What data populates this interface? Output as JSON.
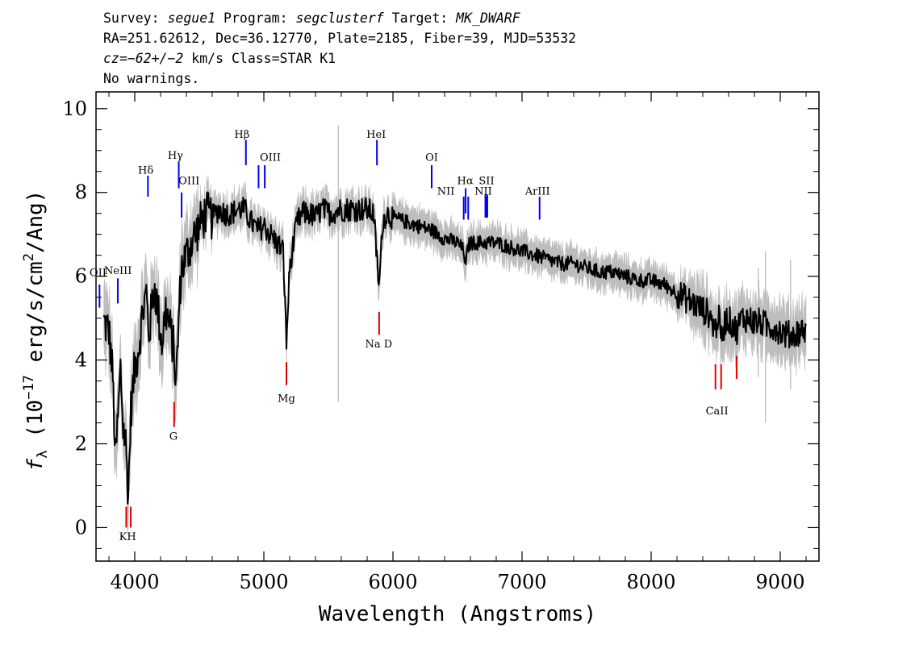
{
  "header": {
    "line1": {
      "survey_label": "Survey:",
      "survey": "segue1",
      "program_label": "Program:",
      "program": "segclusterf",
      "target_label": "Target:",
      "target": "MK_DWARF"
    },
    "line2": "RA=251.62612, Dec=36.12770, Plate=2185, Fiber=39, MJD=53532",
    "line3": {
      "cz": "cz=−62+/−2",
      "rest": " km/s Class=STAR K1"
    },
    "line4": "No warnings."
  },
  "colors": {
    "flux": "#000000",
    "error_band": "#bdbdbd",
    "emission_marker": "#0000ee",
    "absorption_marker": "#dd0000"
  },
  "chart_data": {
    "type": "line",
    "xlabel": "Wavelength (Angstroms)",
    "ylabel_parts": {
      "f": "f",
      "sub": "λ",
      "open": " (10",
      "exp1": "−17",
      "mid": " erg/s/cm",
      "exp2": "2",
      "close": "/Ang)"
    },
    "xlim": [
      3700,
      9300
    ],
    "ylim": [
      -0.8,
      10.4
    ],
    "xticks": [
      4000,
      5000,
      6000,
      7000,
      8000,
      9000
    ],
    "yticks": [
      0,
      2,
      4,
      6,
      8,
      10
    ],
    "series": [
      {
        "x": [
          3760,
          3800,
          3830,
          3850,
          3870,
          3890,
          3910,
          3930,
          3950,
          3970,
          4000,
          4030,
          4060,
          4090,
          4110,
          4150,
          4180,
          4210,
          4240,
          4270,
          4300,
          4320,
          4340,
          4360,
          4400,
          4450,
          4500,
          4550,
          4600,
          4650,
          4700,
          4750,
          4800,
          4850,
          4900,
          4950,
          5000,
          5050,
          5100,
          5150,
          5175,
          5200,
          5230,
          5260,
          5300,
          5350,
          5400,
          5450,
          5500,
          5600,
          5700,
          5800,
          5850,
          5893,
          5920,
          5950,
          6000,
          6100,
          6200,
          6300,
          6400,
          6500,
          6550,
          6563,
          6580,
          6600,
          6700,
          6800,
          6900,
          7000,
          7100,
          7200,
          7300,
          7400,
          7500,
          7600,
          7700,
          7800,
          7900,
          8000,
          8100,
          8200,
          8300,
          8400,
          8450,
          8498,
          8520,
          8542,
          8580,
          8620,
          8662,
          8700,
          8750,
          8800,
          8850,
          8900,
          8950,
          9000,
          9050,
          9100,
          9150,
          9200
        ],
        "y": [
          4.9,
          4.7,
          3.6,
          1.6,
          2.6,
          3.8,
          2.4,
          2.0,
          0.8,
          2.8,
          3.8,
          4.3,
          5.1,
          5.6,
          4.6,
          5.8,
          5.2,
          4.4,
          5.2,
          4.8,
          4.3,
          3.4,
          4.9,
          6.2,
          6.5,
          6.9,
          7.2,
          7.5,
          7.4,
          7.6,
          7.5,
          7.5,
          7.6,
          7.6,
          7.3,
          7.1,
          7.2,
          7.0,
          6.8,
          6.6,
          4.4,
          6.2,
          6.8,
          7.3,
          7.5,
          7.5,
          7.4,
          7.6,
          7.5,
          7.6,
          7.6,
          7.6,
          7.5,
          5.7,
          7.3,
          7.5,
          7.4,
          7.3,
          7.2,
          7.1,
          6.9,
          6.8,
          6.6,
          6.2,
          6.7,
          6.8,
          6.8,
          6.8,
          6.7,
          6.6,
          6.5,
          6.4,
          6.3,
          6.3,
          6.2,
          6.1,
          6.1,
          6.0,
          5.9,
          5.9,
          5.8,
          5.6,
          5.4,
          5.2,
          5.1,
          4.7,
          5.1,
          4.5,
          5.0,
          4.9,
          4.7,
          5.0,
          5.0,
          4.9,
          4.9,
          4.8,
          4.8,
          4.7,
          4.6,
          4.6,
          4.7,
          4.7
        ]
      }
    ],
    "error_band_halfwidth": 0.35,
    "emission_lines": [
      {
        "label": "NeIII",
        "x": 3869,
        "y0": 5.35,
        "y1": 5.95,
        "lx": 3870,
        "ly": 6.05
      },
      {
        "label": "OII",
        "x": 3727,
        "y0": 5.25,
        "y1": 5.8,
        "lx": 3715,
        "ly": 6.0
      },
      {
        "label": "Hδ",
        "x": 4102,
        "y0": 7.9,
        "y1": 8.4,
        "lx": 4085,
        "ly": 8.45
      },
      {
        "label": "Hγ",
        "x": 4341,
        "y0": 8.1,
        "y1": 8.75,
        "lx": 4315,
        "ly": 8.8
      },
      {
        "label": "OIII",
        "x": 4363,
        "y0": 7.4,
        "y1": 8.0,
        "lx": 4420,
        "ly": 8.2
      },
      {
        "label": "Hβ",
        "x": 4861,
        "y0": 8.65,
        "y1": 9.25,
        "lx": 4830,
        "ly": 9.3
      },
      {
        "label": "OIII",
        "x": 4959,
        "y0": 8.1,
        "y1": 8.65,
        "lx": 5050,
        "ly": 8.75
      },
      {
        "label": "OIII",
        "x": 5007,
        "y0": 8.1,
        "y1": 8.65
      },
      {
        "label": "HeI",
        "x": 5876,
        "y0": 8.65,
        "y1": 9.25,
        "lx": 5870,
        "ly": 9.3
      },
      {
        "label": "OI",
        "x": 6300,
        "y0": 8.1,
        "y1": 8.65,
        "lx": 6300,
        "ly": 8.75
      },
      {
        "label": "NII",
        "x": 6548,
        "y0": 7.35,
        "y1": 7.9,
        "lx": 6410,
        "ly": 7.95
      },
      {
        "label": "Hα",
        "x": 6563,
        "y0": 7.5,
        "y1": 8.1,
        "lx": 6560,
        "ly": 8.2
      },
      {
        "label": "NII",
        "x": 6583,
        "y0": 7.35,
        "y1": 7.9
      },
      {
        "label": "SII",
        "x": 6716,
        "y0": 7.4,
        "y1": 7.95,
        "lx": 6725,
        "ly": 8.2
      },
      {
        "label": "SII",
        "x": 6731,
        "y0": 7.4,
        "y1": 7.95
      },
      {
        "label": "NII",
        "x": 6725,
        "y0": 7.4,
        "y1": 7.9,
        "lx": 6700,
        "ly": 7.95
      },
      {
        "label": "ArIII",
        "x": 7136,
        "y0": 7.35,
        "y1": 7.9,
        "lx": 7120,
        "ly": 7.95
      }
    ],
    "absorption_lines": [
      {
        "label": "K",
        "x": 3934,
        "y0": 0.0,
        "y1": 0.5
      },
      {
        "label": "H",
        "x": 3969,
        "y0": 0.0,
        "y1": 0.5,
        "lx": 3945,
        "ly": -0.3,
        "text": "KH"
      },
      {
        "label": "G",
        "x": 4305,
        "y0": 2.4,
        "y1": 3.0,
        "lx": 4300,
        "ly": 2.1,
        "text": "G"
      },
      {
        "label": "Mg",
        "x": 5175,
        "y0": 3.4,
        "y1": 3.95,
        "lx": 5175,
        "ly": 3.0,
        "text": "Mg"
      },
      {
        "label": "Na D",
        "x": 5893,
        "y0": 4.6,
        "y1": 5.15,
        "lx": 5890,
        "ly": 4.3,
        "text": "Na D"
      },
      {
        "label": "CaII",
        "x": 8498,
        "y0": 3.3,
        "y1": 3.9
      },
      {
        "label": "CaII",
        "x": 8542,
        "y0": 3.3,
        "y1": 3.9,
        "lx": 8510,
        "ly": 2.7,
        "text": "CaII"
      },
      {
        "label": "CaII",
        "x": 8662,
        "y0": 3.55,
        "y1": 4.1
      }
    ]
  }
}
